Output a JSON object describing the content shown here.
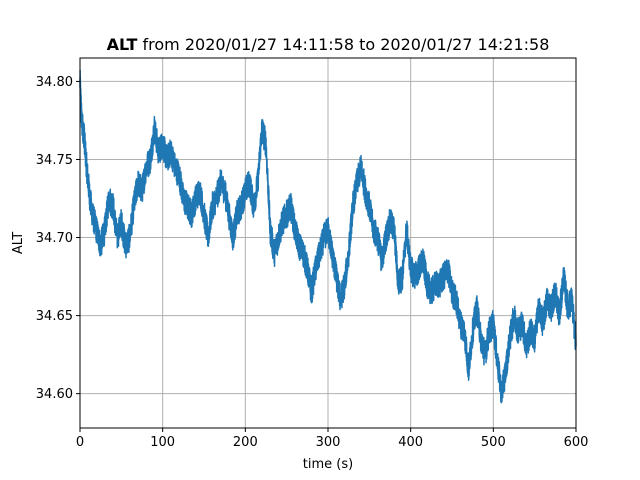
{
  "chart_data": {
    "type": "line",
    "title_bold": "ALT",
    "title_rest": " from 2020/01/27 14:11:58 to 2020/01/27 14:21:58",
    "xlabel": "time (s)",
    "ylabel": "ALT",
    "xlim": [
      0,
      600
    ],
    "ylim": [
      34.578,
      34.815
    ],
    "xticks": [
      0,
      100,
      200,
      300,
      400,
      500,
      600
    ],
    "xtick_labels": [
      "0",
      "100",
      "200",
      "300",
      "400",
      "500",
      "600"
    ],
    "yticks": [
      34.6,
      34.65,
      34.7,
      34.75,
      34.8
    ],
    "ytick_labels": [
      "34.60",
      "34.65",
      "34.70",
      "34.75",
      "34.80"
    ],
    "grid": true,
    "series": [
      {
        "color": "#1f77b4",
        "x": [
          0,
          2,
          5,
          8,
          12,
          15,
          20,
          25,
          30,
          35,
          40,
          45,
          50,
          55,
          60,
          65,
          70,
          75,
          80,
          85,
          90,
          95,
          100,
          105,
          110,
          115,
          120,
          125,
          130,
          135,
          140,
          145,
          150,
          155,
          160,
          165,
          170,
          175,
          180,
          185,
          190,
          195,
          200,
          205,
          210,
          215,
          220,
          225,
          230,
          235,
          240,
          245,
          250,
          255,
          260,
          265,
          270,
          275,
          280,
          285,
          290,
          295,
          300,
          305,
          310,
          315,
          320,
          325,
          330,
          335,
          340,
          345,
          350,
          355,
          360,
          365,
          370,
          375,
          380,
          385,
          390,
          395,
          400,
          405,
          410,
          415,
          420,
          425,
          430,
          435,
          440,
          445,
          450,
          455,
          460,
          465,
          470,
          475,
          480,
          485,
          490,
          495,
          500,
          505,
          510,
          515,
          520,
          525,
          530,
          535,
          540,
          545,
          550,
          555,
          560,
          565,
          570,
          575,
          580,
          585,
          590,
          595,
          600
        ],
        "y": [
          34.8,
          34.775,
          34.765,
          34.745,
          34.725,
          34.715,
          34.705,
          34.695,
          34.705,
          34.725,
          34.72,
          34.7,
          34.71,
          34.695,
          34.7,
          34.72,
          34.735,
          34.73,
          34.745,
          34.75,
          34.77,
          34.755,
          34.76,
          34.75,
          34.755,
          34.745,
          34.74,
          34.725,
          34.72,
          34.715,
          34.725,
          34.73,
          34.715,
          34.7,
          34.72,
          34.725,
          34.735,
          34.73,
          34.715,
          34.7,
          34.715,
          34.72,
          34.73,
          34.735,
          34.72,
          34.735,
          34.77,
          34.76,
          34.705,
          34.69,
          34.7,
          34.71,
          34.715,
          34.72,
          34.705,
          34.695,
          34.69,
          34.68,
          34.665,
          34.68,
          34.69,
          34.7,
          34.705,
          34.69,
          34.675,
          34.66,
          34.67,
          34.69,
          34.72,
          34.735,
          34.745,
          34.73,
          34.72,
          34.705,
          34.7,
          34.685,
          34.7,
          34.71,
          34.705,
          34.67,
          34.675,
          34.705,
          34.68,
          34.675,
          34.68,
          34.685,
          34.67,
          34.665,
          34.67,
          34.67,
          34.675,
          34.68,
          34.665,
          34.66,
          34.645,
          34.64,
          34.615,
          34.64,
          34.655,
          34.635,
          34.625,
          34.64,
          34.645,
          34.62,
          34.6,
          34.615,
          34.635,
          34.65,
          34.64,
          34.645,
          34.63,
          34.64,
          34.635,
          34.655,
          34.645,
          34.66,
          34.655,
          34.665,
          34.65,
          34.675,
          34.655,
          34.66,
          34.63
        ]
      }
    ]
  }
}
